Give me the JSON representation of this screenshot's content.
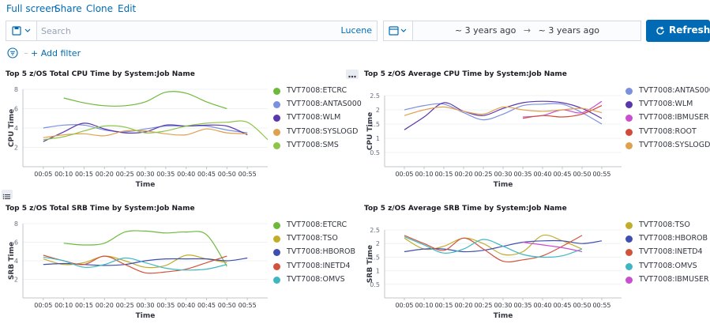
{
  "topnav": [
    "Full screen",
    "Share",
    "Clone",
    "Edit"
  ],
  "query": {
    "placeholder": "Search",
    "language": "Lucene"
  },
  "time": {
    "from": "~ 3 years ago",
    "arrow": "→",
    "to": "~ 3 years ago"
  },
  "refresh_label": "Refresh",
  "filter": {
    "add_label": "+ Add filter"
  },
  "x_ticks": [
    "00:05",
    "00:10",
    "00:15",
    "00:20",
    "00:25",
    "00:30",
    "00:35",
    "00:40",
    "00:45",
    "00:50",
    "00:55"
  ],
  "panels": [
    {
      "title": "Top 5 z/OS Total CPU Time by System:Job Name",
      "ylabel": "CPU Time",
      "xlabel": "Time",
      "yticks": [
        "2",
        "4",
        "6",
        "8"
      ],
      "legend": [
        {
          "label": "TVT7008:ETCRC",
          "color": "#6dba3b"
        },
        {
          "label": "TVT7008:ANTAS000",
          "color": "#7b90e0"
        },
        {
          "label": "TVT7008:WLM",
          "color": "#5a37ad"
        },
        {
          "label": "TVT7008:SYSLOGD",
          "color": "#e0a14f"
        },
        {
          "label": "TVT7008:SMS",
          "color": "#8fc44b"
        }
      ]
    },
    {
      "title": "Top 5 z/OS Average CPU Time by System:Job Name",
      "ylabel": "CPU Time",
      "xlabel": "Time",
      "yticks": [
        "0.5",
        "1",
        "1.5",
        "2",
        "2.5"
      ],
      "legend": [
        {
          "label": "TVT7008:ANTAS000",
          "color": "#7b90e0"
        },
        {
          "label": "TVT7008:WLM",
          "color": "#5a37ad"
        },
        {
          "label": "TVT7008:IBMUSER",
          "color": "#c94fd0"
        },
        {
          "label": "TVT7008:ROOT",
          "color": "#d24b3a"
        },
        {
          "label": "TVT7008:SYSLOGD",
          "color": "#e0a14f"
        }
      ]
    },
    {
      "title": "Top 5 z/OS Total SRB Time by System:Job Name",
      "ylabel": "SRB Time",
      "xlabel": "Time",
      "yticks": [
        "2",
        "4",
        "6",
        "8"
      ],
      "legend": [
        {
          "label": "TVT7008:ETCRC",
          "color": "#6dba3b"
        },
        {
          "label": "TVT7008:TSO",
          "color": "#c2ad2b"
        },
        {
          "label": "TVT7008:HBOROB",
          "color": "#3e4fb0"
        },
        {
          "label": "TVT7008:INETD4",
          "color": "#d2533a"
        },
        {
          "label": "TVT7008:OMVS",
          "color": "#3fb7c2"
        }
      ]
    },
    {
      "title": "Top 5 z/OS Average SRB Time by System:Job Name",
      "ylabel": "SRB Time",
      "xlabel": "Time",
      "yticks": [
        "0.5",
        "1",
        "1.5",
        "2",
        "2.5"
      ],
      "legend": [
        {
          "label": "TVT7008:TSO",
          "color": "#c2ad2b"
        },
        {
          "label": "TVT7008:HBOROB",
          "color": "#3e4fb0"
        },
        {
          "label": "TVT7008:INETD4",
          "color": "#d2533a"
        },
        {
          "label": "TVT7008:OMVS",
          "color": "#3fb7c2"
        },
        {
          "label": "TVT7008:IBMUSER",
          "color": "#c94fd0"
        }
      ]
    }
  ],
  "chart_data": [
    {
      "type": "line",
      "title": "Top 5 z/OS Total CPU Time by System:Job Name",
      "xlabel": "Time",
      "ylabel": "CPU Time",
      "ylim": [
        0,
        8
      ],
      "x": [
        0,
        5,
        10,
        15,
        20,
        25,
        30,
        35,
        40,
        45,
        50,
        55,
        60
      ],
      "series": [
        {
          "name": "TVT7008:ETCRC",
          "values": [
            null,
            null,
            7.1,
            6.6,
            6.3,
            6.3,
            6.7,
            7.7,
            7.6,
            6.7,
            6.0,
            null,
            null
          ]
        },
        {
          "name": "TVT7008:ANTAS000",
          "values": [
            null,
            4.0,
            4.3,
            4.3,
            3.8,
            3.6,
            3.9,
            4.2,
            4.2,
            4.2,
            3.8,
            3.5,
            null
          ]
        },
        {
          "name": "TVT7008:WLM",
          "values": [
            null,
            2.6,
            3.6,
            4.5,
            3.9,
            3.5,
            3.6,
            4.3,
            4.2,
            4.3,
            4.2,
            3.3,
            null
          ]
        },
        {
          "name": "TVT7008:SYSLOGD",
          "values": [
            null,
            3.0,
            3.3,
            3.4,
            3.2,
            3.7,
            3.7,
            3.4,
            3.3,
            3.9,
            3.5,
            3.4,
            null
          ]
        },
        {
          "name": "TVT7008:SMS",
          "values": [
            null,
            2.8,
            3.1,
            3.7,
            4.2,
            4.1,
            3.5,
            3.7,
            4.2,
            4.5,
            4.6,
            4.6,
            2.8
          ]
        }
      ]
    },
    {
      "type": "line",
      "title": "Top 5 z/OS Average CPU Time by System:Job Name",
      "xlabel": "Time",
      "ylabel": "CPU Time",
      "ylim": [
        0,
        2.5
      ],
      "x": [
        0,
        5,
        10,
        15,
        20,
        25,
        30,
        35,
        40,
        45,
        50,
        55,
        60
      ],
      "series": [
        {
          "name": "TVT7008:ANTAS000",
          "values": [
            null,
            2.0,
            2.15,
            2.2,
            1.9,
            1.65,
            1.85,
            2.15,
            2.2,
            2.2,
            1.9,
            1.5,
            null
          ]
        },
        {
          "name": "TVT7008:WLM",
          "values": [
            null,
            1.3,
            1.75,
            2.25,
            1.95,
            1.8,
            2.05,
            2.25,
            2.3,
            2.25,
            2.05,
            1.7,
            null
          ]
        },
        {
          "name": "TVT7008:IBMUSER",
          "values": [
            null,
            null,
            null,
            null,
            null,
            null,
            null,
            1.75,
            1.8,
            2.0,
            1.9,
            2.3,
            null
          ]
        },
        {
          "name": "TVT7008:ROOT",
          "values": [
            null,
            null,
            null,
            null,
            null,
            null,
            null,
            1.7,
            1.8,
            1.75,
            1.85,
            2.15,
            null
          ]
        },
        {
          "name": "TVT7008:SYSLOGD",
          "values": [
            null,
            1.8,
            2.0,
            2.1,
            1.95,
            1.85,
            2.1,
            2.0,
            1.95,
            2.0,
            2.05,
            1.9,
            null
          ]
        }
      ]
    },
    {
      "type": "line",
      "title": "Top 5 z/OS Total SRB Time by System:Job Name",
      "xlabel": "Time",
      "ylabel": "SRB Time",
      "ylim": [
        0,
        8
      ],
      "x": [
        0,
        5,
        10,
        15,
        20,
        25,
        30,
        35,
        40,
        45,
        50,
        55,
        60
      ],
      "series": [
        {
          "name": "TVT7008:ETCRC",
          "values": [
            null,
            null,
            5.9,
            5.7,
            5.9,
            7.1,
            7.2,
            7.0,
            7.1,
            6.8,
            3.4,
            null,
            null
          ]
        },
        {
          "name": "TVT7008:TSO",
          "values": [
            null,
            4.2,
            3.6,
            3.8,
            4.5,
            4.0,
            3.3,
            3.5,
            4.6,
            4.2,
            3.8,
            null,
            null
          ]
        },
        {
          "name": "TVT7008:HBOROB",
          "values": [
            null,
            3.6,
            3.7,
            3.6,
            3.5,
            3.6,
            4.0,
            4.2,
            4.2,
            4.2,
            4.0,
            4.3,
            null
          ]
        },
        {
          "name": "TVT7008:INETD4",
          "values": [
            null,
            4.6,
            4.0,
            3.6,
            4.5,
            3.6,
            2.7,
            2.8,
            3.1,
            3.8,
            4.5,
            null,
            null
          ]
        },
        {
          "name": "TVT7008:OMVS",
          "values": [
            null,
            4.4,
            4.0,
            3.3,
            3.6,
            4.3,
            3.8,
            3.2,
            3.0,
            3.1,
            3.6,
            null,
            null
          ]
        }
      ]
    },
    {
      "type": "line",
      "title": "Top 5 z/OS Average SRB Time by System:Job Name",
      "xlabel": "Time",
      "ylabel": "SRB Time",
      "ylim": [
        0,
        2.5
      ],
      "x": [
        0,
        5,
        10,
        15,
        20,
        25,
        30,
        35,
        40,
        45,
        50,
        55,
        60
      ],
      "series": [
        {
          "name": "TVT7008:TSO",
          "values": [
            null,
            2.2,
            1.8,
            1.9,
            2.2,
            2.0,
            1.6,
            1.7,
            2.3,
            2.1,
            1.8,
            null,
            null
          ]
        },
        {
          "name": "TVT7008:HBOROB",
          "values": [
            null,
            1.7,
            1.8,
            1.8,
            1.7,
            1.75,
            1.9,
            2.05,
            2.1,
            2.1,
            2.0,
            2.1,
            null
          ]
        },
        {
          "name": "TVT7008:INETD4",
          "values": [
            null,
            2.3,
            2.0,
            1.75,
            2.2,
            1.8,
            1.35,
            1.4,
            1.55,
            1.9,
            2.3,
            null,
            null
          ]
        },
        {
          "name": "TVT7008:OMVS",
          "values": [
            null,
            2.25,
            1.95,
            1.65,
            1.8,
            2.15,
            1.9,
            1.6,
            1.5,
            1.55,
            1.8,
            null,
            null
          ]
        },
        {
          "name": "TVT7008:IBMUSER",
          "values": [
            null,
            null,
            null,
            null,
            null,
            null,
            null,
            2.05,
            1.95,
            1.85,
            1.7,
            null,
            null
          ]
        }
      ]
    }
  ]
}
